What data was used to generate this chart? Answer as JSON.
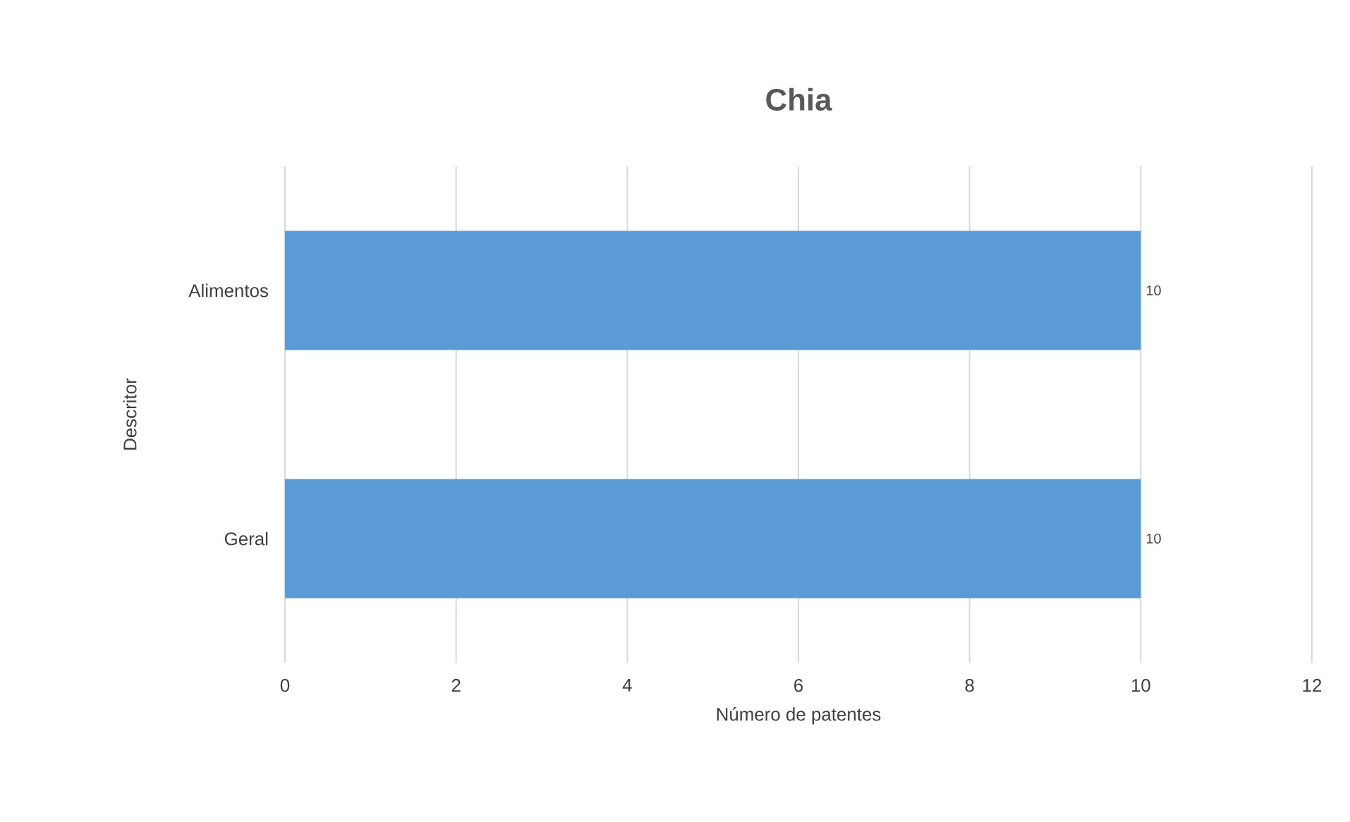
{
  "chart_data": {
    "type": "bar",
    "orientation": "horizontal",
    "title": "Chia",
    "xlabel": "Número de patentes",
    "ylabel": "Descritor",
    "categories": [
      "Alimentos",
      "Geral"
    ],
    "values": [
      10,
      10
    ],
    "color": "#5b9bd5",
    "xlim": [
      0,
      12
    ],
    "xticks": [
      0,
      2,
      4,
      6,
      8,
      10,
      12
    ],
    "grid": "x",
    "data_labels": true
  }
}
